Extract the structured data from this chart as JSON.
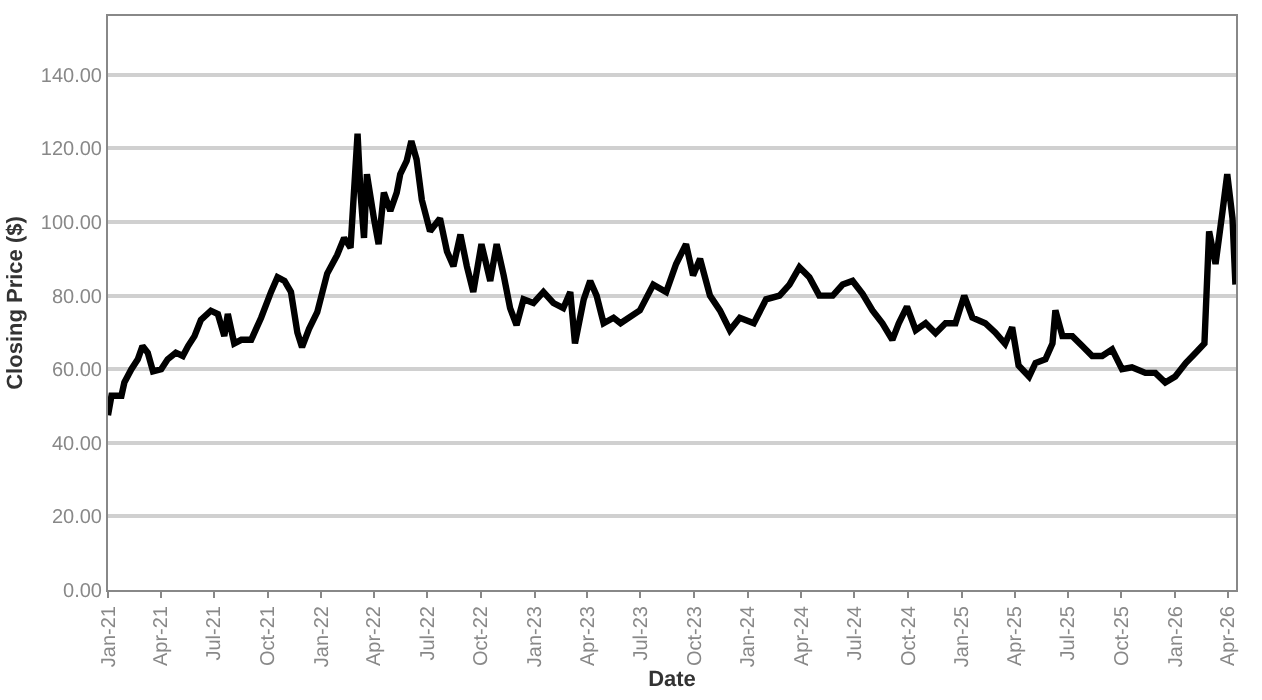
{
  "chart_data": {
    "type": "line",
    "xlabel": "Date",
    "ylabel": "Closing Price ($)",
    "xlim": [
      "2021-01-01",
      "2026-04-15"
    ],
    "xticks": [
      {
        "value": "2021-01-01",
        "label": "Jan-21"
      },
      {
        "value": "2021-04-01",
        "label": "Apr-21"
      },
      {
        "value": "2021-07-01",
        "label": "Jul-21"
      },
      {
        "value": "2021-10-01",
        "label": "Oct-21"
      },
      {
        "value": "2022-01-01",
        "label": "Jan-22"
      },
      {
        "value": "2022-04-01",
        "label": "Apr-22"
      },
      {
        "value": "2022-07-01",
        "label": "Jul-22"
      },
      {
        "value": "2022-10-01",
        "label": "Oct-22"
      },
      {
        "value": "2023-01-01",
        "label": "Jan-23"
      },
      {
        "value": "2023-04-01",
        "label": "Apr-23"
      },
      {
        "value": "2023-07-01",
        "label": "Jul-23"
      },
      {
        "value": "2023-10-01",
        "label": "Oct-23"
      },
      {
        "value": "2024-01-01",
        "label": "Jan-24"
      },
      {
        "value": "2024-04-01",
        "label": "Apr-24"
      },
      {
        "value": "2024-07-01",
        "label": "Jul-24"
      },
      {
        "value": "2024-10-01",
        "label": "Oct-24"
      },
      {
        "value": "2025-01-01",
        "label": "Jan-25"
      },
      {
        "value": "2025-04-01",
        "label": "Apr-25"
      },
      {
        "value": "2025-07-01",
        "label": "Jul-25"
      },
      {
        "value": "2025-10-01",
        "label": "Oct-25"
      },
      {
        "value": "2026-01-01",
        "label": "Jan-26"
      },
      {
        "value": "2026-04-01",
        "label": "Apr-26"
      }
    ],
    "ylim": [
      0,
      156
    ],
    "yticks": [
      {
        "value": 0,
        "label": "0.00"
      },
      {
        "value": 20,
        "label": "20.00"
      },
      {
        "value": 40,
        "label": "40.00"
      },
      {
        "value": 60,
        "label": "60.00"
      },
      {
        "value": 80,
        "label": "80.00"
      },
      {
        "value": 100,
        "label": "100.00"
      },
      {
        "value": 120,
        "label": "120.00"
      },
      {
        "value": 140,
        "label": "140.00"
      }
    ],
    "grid": "y",
    "marker": "none",
    "line_style": "solid",
    "x": [
      "2021-01-01",
      "2021-01-07",
      "2021-01-24",
      "2021-01-29",
      "2021-02-10",
      "2021-02-21",
      "2021-03-01",
      "2021-03-10",
      "2021-03-19",
      "2021-04-02",
      "2021-04-13",
      "2021-04-27",
      "2021-05-09",
      "2021-05-18",
      "2021-05-29",
      "2021-06-09",
      "2021-06-26",
      "2021-07-08",
      "2021-07-19",
      "2021-07-25",
      "2021-08-05",
      "2021-08-17",
      "2021-09-03",
      "2021-09-20",
      "2021-10-07",
      "2021-10-18",
      "2021-10-30",
      "2021-11-10",
      "2021-11-21",
      "2021-11-29",
      "2021-12-11",
      "2021-12-25",
      "2022-01-11",
      "2022-01-28",
      "2022-02-09",
      "2022-02-20",
      "2022-03-04",
      "2022-03-09",
      "2022-03-15",
      "2022-03-20",
      "2022-04-01",
      "2022-04-09",
      "2022-04-18",
      "2022-04-29",
      "2022-05-10",
      "2022-05-16",
      "2022-05-27",
      "2022-06-04",
      "2022-06-13",
      "2022-06-22",
      "2022-07-06",
      "2022-07-23",
      "2022-08-04",
      "2022-08-15",
      "2022-08-27",
      "2022-09-07",
      "2022-09-18",
      "2022-10-02",
      "2022-10-17",
      "2022-10-28",
      "2022-11-09",
      "2022-11-20",
      "2022-12-01",
      "2022-12-13",
      "2022-12-30",
      "2023-01-16",
      "2023-02-02",
      "2023-02-19",
      "2023-03-03",
      "2023-03-11",
      "2023-03-26",
      "2023-04-06",
      "2023-04-17",
      "2023-04-29",
      "2023-05-16",
      "2023-05-28",
      "2023-06-30",
      "2023-07-23",
      "2023-08-14",
      "2023-08-31",
      "2023-09-17",
      "2023-09-29",
      "2023-10-11",
      "2023-10-28",
      "2023-11-14",
      "2023-12-01",
      "2023-12-18",
      "2024-01-11",
      "2024-02-01",
      "2024-02-24",
      "2024-03-12",
      "2024-03-29",
      "2024-04-15",
      "2024-05-02",
      "2024-05-25",
      "2024-06-11",
      "2024-06-28",
      "2024-07-15",
      "2024-08-01",
      "2024-08-18",
      "2024-09-04",
      "2024-09-15",
      "2024-09-29",
      "2024-10-14",
      "2024-10-31",
      "2024-11-17",
      "2024-12-04",
      "2024-12-21",
      "2025-01-05",
      "2025-01-19",
      "2025-02-10",
      "2025-02-27",
      "2025-03-16",
      "2025-03-28",
      "2025-04-08",
      "2025-04-26",
      "2025-05-07",
      "2025-05-24",
      "2025-06-05",
      "2025-06-10",
      "2025-06-22",
      "2025-07-09",
      "2025-07-26",
      "2025-08-12",
      "2025-08-29",
      "2025-09-15",
      "2025-10-02",
      "2025-10-19",
      "2025-11-11",
      "2025-11-28",
      "2025-12-15",
      "2026-01-01",
      "2026-01-19",
      "2026-02-05",
      "2026-02-20",
      "2026-02-28",
      "2026-03-11",
      "2026-03-23",
      "2026-03-31",
      "2026-04-09",
      "2026-04-14"
    ],
    "series": [
      {
        "color": "#000000",
        "values": [
          47.5,
          52.8,
          52.8,
          56.4,
          60,
          62.7,
          66.3,
          64.5,
          59.4,
          60,
          62.7,
          64.5,
          63.6,
          66.3,
          69,
          73.4,
          75.9,
          75,
          69,
          75,
          67,
          68,
          68,
          74,
          81,
          85,
          84,
          81,
          70,
          66,
          71,
          75.5,
          86,
          91,
          95.7,
          93,
          124,
          108,
          95.7,
          113,
          101,
          94,
          108,
          103,
          108,
          113,
          116.6,
          122,
          117,
          106,
          97.5,
          101,
          92,
          88,
          96.6,
          88,
          81,
          94,
          84,
          94,
          85.5,
          76.6,
          72,
          79,
          78,
          81,
          78,
          76.6,
          81,
          67,
          79,
          84,
          80,
          72.5,
          74,
          72.5,
          76,
          83,
          81,
          88.6,
          94,
          85.5,
          90,
          80,
          76,
          70.6,
          74,
          72.5,
          79,
          80,
          83,
          87.7,
          85,
          80,
          80,
          83,
          84,
          80.5,
          76,
          72.5,
          68,
          72.5,
          77,
          70.6,
          72.5,
          69.8,
          72.5,
          72.5,
          80,
          74,
          72.5,
          70,
          66.9,
          71.4,
          61,
          58,
          61.7,
          62.7,
          67,
          76,
          69,
          69,
          66.3,
          63.6,
          63.6,
          65.4,
          60,
          60.5,
          59,
          59,
          56.4,
          58,
          61.7,
          64.5,
          67,
          97.5,
          88.6,
          103,
          113,
          101,
          83
        ]
      }
    ]
  }
}
